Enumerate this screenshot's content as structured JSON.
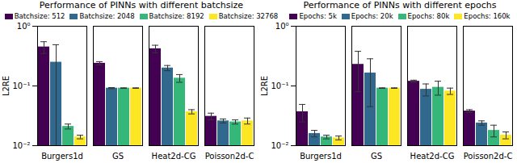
{
  "chart_data": [
    {
      "type": "bar",
      "title": "Performance of PINNs with different batchsize",
      "y_label": "L2RE",
      "categories": [
        "Burgers1d",
        "GS",
        "Heat2d-CG",
        "Poisson2d-C"
      ],
      "series": [
        {
          "name": "Batchsize: 512",
          "color": "#440154",
          "values": [
            0.45,
            0.24,
            0.42,
            0.031
          ],
          "errors": [
            0.1,
            0.015,
            0.06,
            0.004
          ]
        },
        {
          "name": "Batchsize: 2048",
          "color": "#31688e",
          "values": [
            0.25,
            0.092,
            0.2,
            0.026
          ],
          "errors": [
            0.24,
            0.002,
            0.02,
            0.002
          ]
        },
        {
          "name": "Batchsize: 8192",
          "color": "#35b779",
          "values": [
            0.021,
            0.092,
            0.135,
            0.025
          ],
          "errors": [
            0.002,
            0.001,
            0.02,
            0.002
          ]
        },
        {
          "name": "Batchsize: 32768",
          "color": "#fde725",
          "values": [
            0.014,
            0.092,
            0.037,
            0.026
          ],
          "errors": [
            0.001,
            0.001,
            0.003,
            0.003
          ]
        }
      ],
      "ylim": [
        0.01,
        1
      ],
      "yticks": [
        {
          "value": 0.01,
          "label": "10⁻²"
        },
        {
          "value": 0.1,
          "label": "10⁻¹"
        },
        {
          "value": 1,
          "label": "10⁰"
        }
      ],
      "log": "y",
      "grid": false,
      "legend": "top-right"
    },
    {
      "type": "bar",
      "title": "Performance of PINNs with different epochs",
      "y_label": "L2RE",
      "categories": [
        "Burgers1d",
        "GS",
        "Heat2d-CG",
        "Poisson2d-C"
      ],
      "series": [
        {
          "name": "Epochs: 5k",
          "color": "#440154",
          "values": [
            0.037,
            0.23,
            0.12,
            0.038
          ],
          "errors": [
            0.012,
            0.15,
            0.005,
            0.002
          ]
        },
        {
          "name": "Epochs: 20k",
          "color": "#31688e",
          "values": [
            0.016,
            0.165,
            0.088,
            0.024
          ],
          "errors": [
            0.002,
            0.12,
            0.02,
            0.002
          ]
        },
        {
          "name": "Epochs: 80k",
          "color": "#35b779",
          "values": [
            0.014,
            0.092,
            0.095,
            0.018
          ],
          "errors": [
            0.001,
            0.001,
            0.025,
            0.004
          ]
        },
        {
          "name": "Epochs: 160k",
          "color": "#fde725",
          "values": [
            0.0135,
            0.092,
            0.082,
            0.015
          ],
          "errors": [
            0.001,
            0.001,
            0.01,
            0.002
          ]
        }
      ],
      "ylim": [
        0.01,
        1
      ],
      "yticks": [
        {
          "value": 0.01,
          "label": "10⁻²"
        },
        {
          "value": 0.1,
          "label": "10⁻¹"
        },
        {
          "value": 1,
          "label": "10⁰"
        }
      ],
      "log": "y",
      "grid": false,
      "legend": "top-right"
    }
  ]
}
